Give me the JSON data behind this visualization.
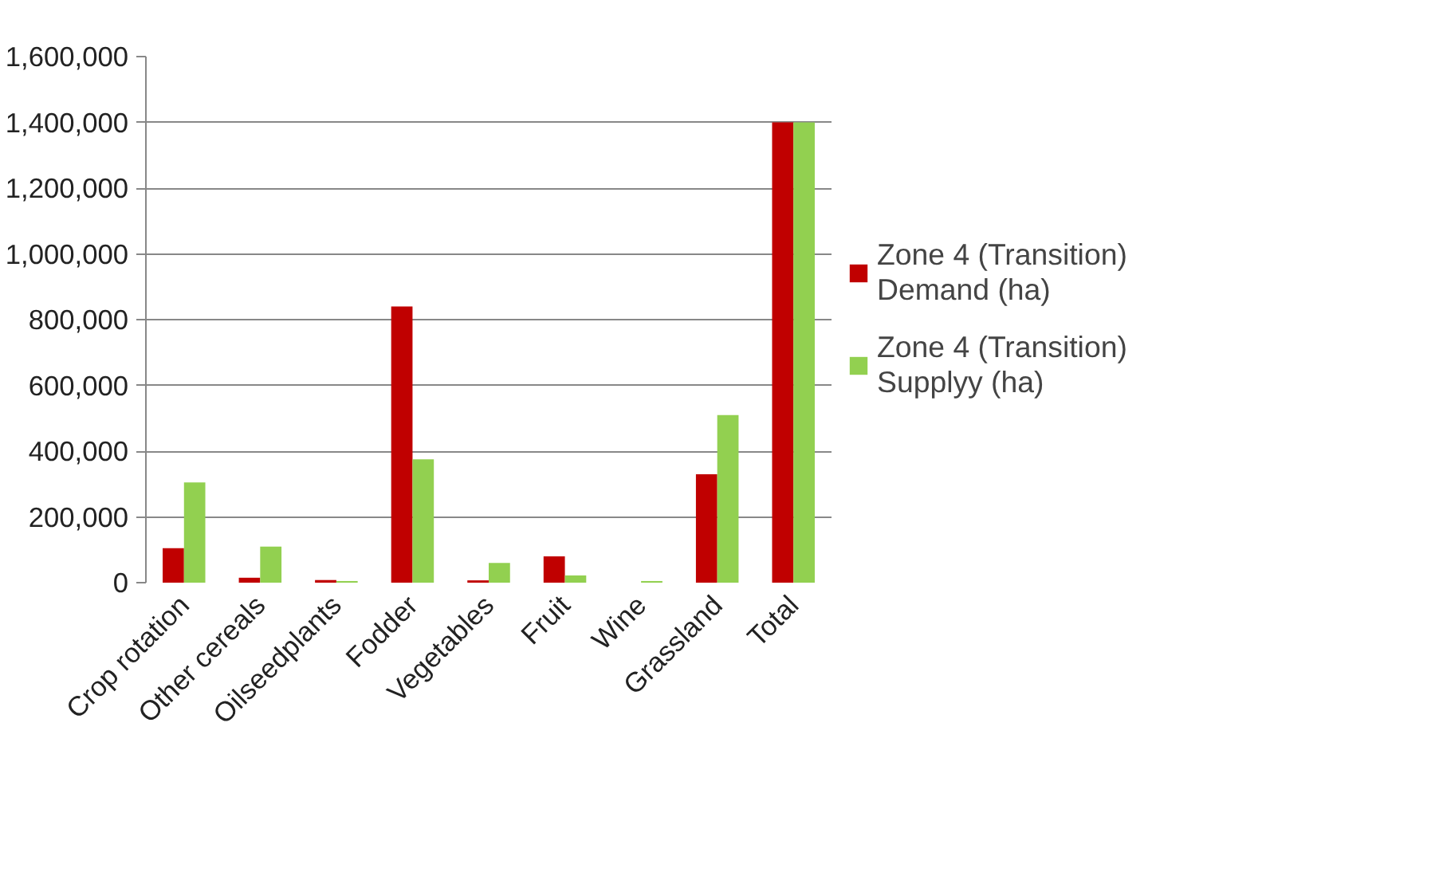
{
  "chart_data": {
    "type": "bar",
    "categories": [
      "Crop rotation",
      "Other cereals",
      "Oilseedplants",
      "Fodder",
      "Vegetables",
      "Fruit",
      "Wine",
      "Grassland",
      "Total"
    ],
    "series": [
      {
        "name": "Zone 4 (Transition)\nDemand (ha)",
        "color": "#c00000",
        "values": [
          105000,
          15000,
          8000,
          840000,
          7000,
          80000,
          0,
          330000,
          1400000
        ]
      },
      {
        "name": "Zone 4 (Transition)\nSupplyy (ha)",
        "color": "#92d050",
        "values": [
          305000,
          110000,
          5000,
          375000,
          60000,
          22000,
          5000,
          510000,
          1400000
        ]
      }
    ],
    "ylim": [
      0,
      1600000
    ],
    "yticks": [
      {
        "value": 0,
        "label": "0"
      },
      {
        "value": 200000,
        "label": "200,000"
      },
      {
        "value": 400000,
        "label": "400,000"
      },
      {
        "value": 600000,
        "label": "600,000"
      },
      {
        "value": 800000,
        "label": "800,000"
      },
      {
        "value": 1000000,
        "label": "1,000,000"
      },
      {
        "value": 1200000,
        "label": "1,200,000"
      },
      {
        "value": 1400000,
        "label": "1,400,000"
      },
      {
        "value": 1600000,
        "label": "1,600,000"
      }
    ],
    "grid": "y",
    "legend": "right"
  }
}
